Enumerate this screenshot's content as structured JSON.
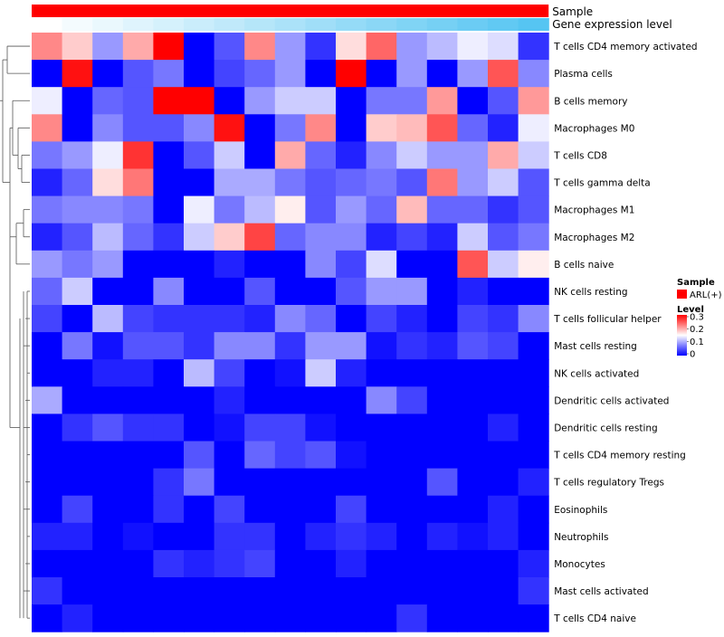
{
  "chart_data": {
    "type": "heatmap",
    "title": "",
    "annotation_bars": [
      {
        "label": "Sample",
        "color": "#ff0000"
      },
      {
        "label": "Gene expression level",
        "ramp_from": "#ffffff",
        "ramp_to": "#56c5f2"
      }
    ],
    "legend": {
      "sample_title": "Sample",
      "sample_entry": "ARL(+)",
      "sample_color": "#ff0000",
      "level_title": "Level",
      "level_ticks": [
        "0.3",
        "0.2",
        "0.1",
        "0"
      ],
      "placement": "right"
    },
    "scale": {
      "min": 0,
      "max": 0.3,
      "low": "#0000ff",
      "mid": "#ffffff",
      "high": "#ff0000"
    },
    "rows": [
      "T cells CD4 memory activated",
      "Plasma cells",
      "B cells memory",
      "Macrophages M0",
      "T cells CD8",
      "T cells gamma delta",
      "Macrophages M1",
      "Macrophages M2",
      "B cells naive",
      "NK cells resting",
      "T cells follicular helper",
      "Mast cells resting",
      "NK cells activated",
      "Dendritic cells activated",
      "Dendritic cells resting",
      "T cells CD4 memory resting",
      "T cells regulatory  Tregs",
      "Eosinophils",
      "Neutrophils",
      "Monocytes",
      "Mast cells activated",
      "T cells CD4 naive"
    ],
    "values": [
      [
        0.22,
        0.18,
        0.09,
        0.2,
        0.3,
        0.0,
        0.05,
        0.22,
        0.09,
        0.03,
        0.17,
        0.24,
        0.09,
        0.11,
        0.14,
        0.13,
        0.03
      ],
      [
        0.0,
        0.29,
        0.0,
        0.05,
        0.07,
        0.0,
        0.04,
        0.06,
        0.09,
        0.0,
        0.3,
        0.0,
        0.09,
        0.0,
        0.09,
        0.25,
        0.08
      ],
      [
        0.14,
        0.0,
        0.06,
        0.05,
        0.3,
        0.3,
        0.0,
        0.09,
        0.12,
        0.12,
        0.0,
        0.07,
        0.07,
        0.21,
        0.0,
        0.05,
        0.21
      ],
      [
        0.22,
        0.0,
        0.08,
        0.05,
        0.05,
        0.08,
        0.29,
        0.0,
        0.07,
        0.22,
        0.0,
        0.18,
        0.19,
        0.25,
        0.06,
        0.02,
        0.14
      ],
      [
        0.07,
        0.09,
        0.14,
        0.27,
        0.0,
        0.05,
        0.12,
        0.0,
        0.2,
        0.06,
        0.02,
        0.08,
        0.12,
        0.09,
        0.09,
        0.2,
        0.12
      ],
      [
        0.02,
        0.06,
        0.17,
        0.23,
        0.0,
        0.0,
        0.1,
        0.1,
        0.07,
        0.05,
        0.06,
        0.07,
        0.05,
        0.23,
        0.09,
        0.12,
        0.05
      ],
      [
        0.07,
        0.08,
        0.08,
        0.07,
        0.0,
        0.14,
        0.07,
        0.11,
        0.16,
        0.05,
        0.09,
        0.06,
        0.19,
        0.06,
        0.06,
        0.03,
        0.05
      ],
      [
        0.02,
        0.05,
        0.11,
        0.06,
        0.03,
        0.12,
        0.18,
        0.26,
        0.06,
        0.08,
        0.08,
        0.02,
        0.04,
        0.02,
        0.12,
        0.05,
        0.07
      ],
      [
        0.09,
        0.07,
        0.09,
        0.0,
        0.0,
        0.0,
        0.02,
        0.0,
        0.0,
        0.08,
        0.04,
        0.13,
        0.0,
        0.0,
        0.25,
        0.12,
        0.16
      ],
      [
        0.06,
        0.12,
        0.0,
        0.0,
        0.08,
        0.0,
        0.0,
        0.05,
        0.0,
        0.0,
        0.05,
        0.09,
        0.09,
        0.0,
        0.02,
        0.0,
        0.0
      ],
      [
        0.04,
        0.0,
        0.11,
        0.04,
        0.03,
        0.03,
        0.03,
        0.02,
        0.08,
        0.06,
        0.0,
        0.04,
        0.02,
        0.0,
        0.04,
        0.03,
        0.08
      ],
      [
        0.0,
        0.07,
        0.01,
        0.05,
        0.05,
        0.03,
        0.08,
        0.08,
        0.03,
        0.09,
        0.09,
        0.01,
        0.03,
        0.02,
        0.05,
        0.04,
        0.0
      ],
      [
        0.0,
        0.0,
        0.02,
        0.02,
        0.0,
        0.11,
        0.04,
        0.0,
        0.01,
        0.12,
        0.02,
        0.0,
        0.0,
        0.0,
        0.0,
        0.0,
        0.0
      ],
      [
        0.1,
        0.0,
        0.0,
        0.0,
        0.0,
        0.0,
        0.02,
        0.0,
        0.0,
        0.0,
        0.0,
        0.08,
        0.04,
        0.0,
        0.0,
        0.0,
        0.0
      ],
      [
        0.0,
        0.03,
        0.05,
        0.03,
        0.03,
        0.0,
        0.01,
        0.04,
        0.04,
        0.01,
        0.0,
        0.0,
        0.0,
        0.0,
        0.0,
        0.02,
        0.0
      ],
      [
        0.0,
        0.0,
        0.0,
        0.0,
        0.0,
        0.05,
        0.0,
        0.06,
        0.04,
        0.05,
        0.01,
        0.0,
        0.0,
        0.0,
        0.0,
        0.0,
        0.0
      ],
      [
        0.0,
        0.0,
        0.0,
        0.0,
        0.03,
        0.07,
        0.0,
        0.0,
        0.0,
        0.0,
        0.0,
        0.0,
        0.0,
        0.05,
        0.0,
        0.0,
        0.02
      ],
      [
        0.0,
        0.04,
        0.0,
        0.0,
        0.03,
        0.0,
        0.04,
        0.0,
        0.0,
        0.0,
        0.04,
        0.0,
        0.0,
        0.0,
        0.0,
        0.02,
        0.0
      ],
      [
        0.02,
        0.02,
        0.0,
        0.01,
        0.0,
        0.0,
        0.03,
        0.03,
        0.0,
        0.02,
        0.03,
        0.02,
        0.0,
        0.02,
        0.01,
        0.02,
        0.0
      ],
      [
        0.0,
        0.0,
        0.0,
        0.0,
        0.03,
        0.02,
        0.03,
        0.04,
        0.0,
        0.0,
        0.02,
        0.0,
        0.0,
        0.0,
        0.0,
        0.0,
        0.02
      ],
      [
        0.03,
        0.0,
        0.0,
        0.0,
        0.0,
        0.0,
        0.0,
        0.0,
        0.0,
        0.0,
        0.0,
        0.0,
        0.0,
        0.0,
        0.0,
        0.0,
        0.03
      ],
      [
        0.0,
        0.02,
        0.0,
        0.0,
        0.0,
        0.0,
        0.0,
        0.0,
        0.0,
        0.0,
        0.0,
        0.0,
        0.03,
        0.0,
        0.0,
        0.0,
        0.0
      ]
    ]
  }
}
